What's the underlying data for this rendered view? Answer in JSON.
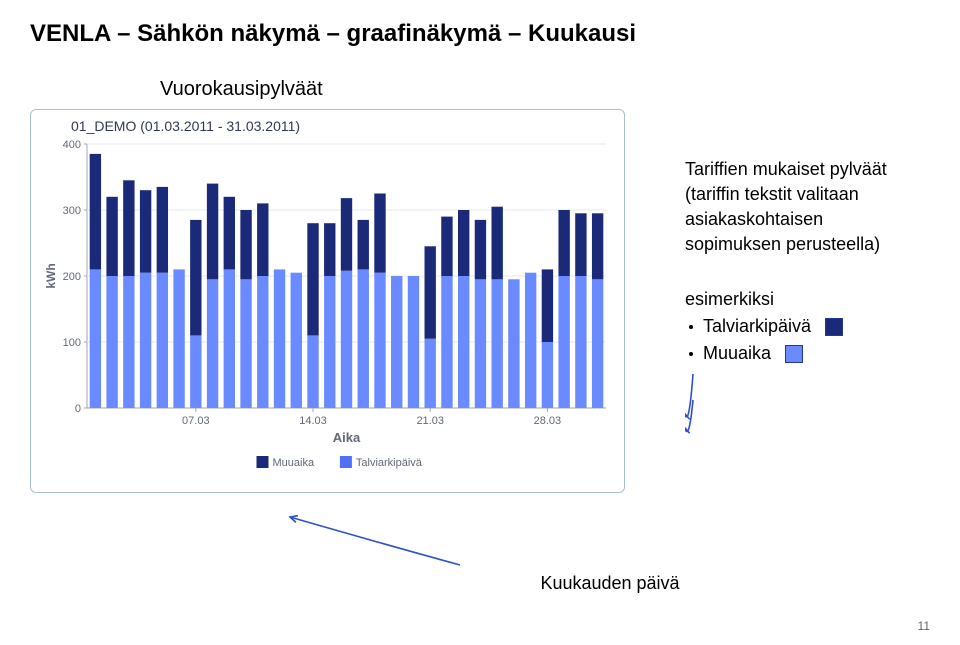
{
  "page": {
    "title": "VENLA – Sähkön näkymä – graafinäkymä – Kuukausi",
    "subtitle": "Vuorokausipylväät",
    "page_number": "11"
  },
  "chart": {
    "type": "bar",
    "title": "01_DEMO (01.03.2011 - 31.03.2011)",
    "ylabel": "kWh",
    "xlabel": "Aika",
    "ylim": [
      0,
      400
    ],
    "ytick_step": 100,
    "yticks": [
      "0",
      "100",
      "200",
      "300",
      "400"
    ],
    "xticks": [
      "07.03",
      "14.03",
      "21.03",
      "28.03"
    ],
    "background_color": "#ffffff",
    "grid_color": "#e4e8ee",
    "axis_color": "#a0a6b0",
    "label_color": "#606878",
    "label_fontsize": 11,
    "title_fontsize": 14,
    "bar_count": 31,
    "series": [
      {
        "name": "Muuaika",
        "color": "#6a8aff"
      },
      {
        "name": "Talviarkipäivä",
        "color": "#1b2a78"
      }
    ],
    "muuaika_values": [
      210,
      200,
      200,
      205,
      205,
      210,
      110,
      195,
      210,
      195,
      200,
      210,
      205,
      110,
      200,
      208,
      210,
      205,
      200,
      200,
      105,
      200,
      200,
      195,
      195,
      195,
      205,
      100,
      200,
      200,
      195
    ],
    "talviarkipaiva_values": [
      175,
      120,
      145,
      125,
      130,
      0,
      175,
      145,
      110,
      105,
      110,
      0,
      0,
      170,
      80,
      110,
      75,
      120,
      0,
      0,
      140,
      90,
      100,
      90,
      110,
      0,
      0,
      110,
      100,
      95,
      100
    ],
    "legend": {
      "items": [
        {
          "label": "Muuaika",
          "color": "#1b2a78"
        },
        {
          "label": "Talviarkipäivä",
          "color": "#5070f8"
        }
      ]
    }
  },
  "side": {
    "line1": "Tariffien mukaiset pylväät",
    "line2": "(tariffin tekstit valitaan",
    "line3": "asiakaskohtaisen",
    "line4": "sopimuksen perusteella)",
    "example_label": "esimerkiksi",
    "bullet1": "Talviarkipäivä",
    "bullet2": "Muuaika",
    "swatch1_color": "#1b2a78",
    "swatch2_color": "#6a8aff"
  },
  "bottom": {
    "label": "Kuukauden päivä"
  },
  "arrow_color": "#3050c8"
}
